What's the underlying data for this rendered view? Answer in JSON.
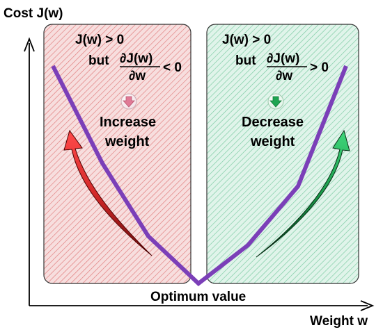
{
  "axes": {
    "y_label": "Cost J(w)",
    "x_label": "Weight w"
  },
  "left_panel": {
    "cond_line1": "J(w) > 0",
    "but": "but",
    "numerator": "∂J(w)",
    "denominator": "∂w",
    "inequality": "< 0",
    "action_line1": "Increase",
    "action_line2": "weight",
    "fill_color": "#f2c9c9",
    "hatch_color": "#e06a6a",
    "arrow_color": "#d42a2a",
    "icon_color": "#e07a96"
  },
  "right_panel": {
    "cond_line1": "J(w) > 0",
    "but": "but",
    "numerator": "∂J(w)",
    "denominator": "∂w",
    "inequality": "> 0",
    "action_line1": "Decrease",
    "action_line2": "weight",
    "fill_color": "#cfeee0",
    "hatch_color": "#6cc79a",
    "arrow_color": "#1a9a4a",
    "icon_color": "#1fa552"
  },
  "curve_color": "#7b3fb8",
  "optimum_label": "Optimum value"
}
